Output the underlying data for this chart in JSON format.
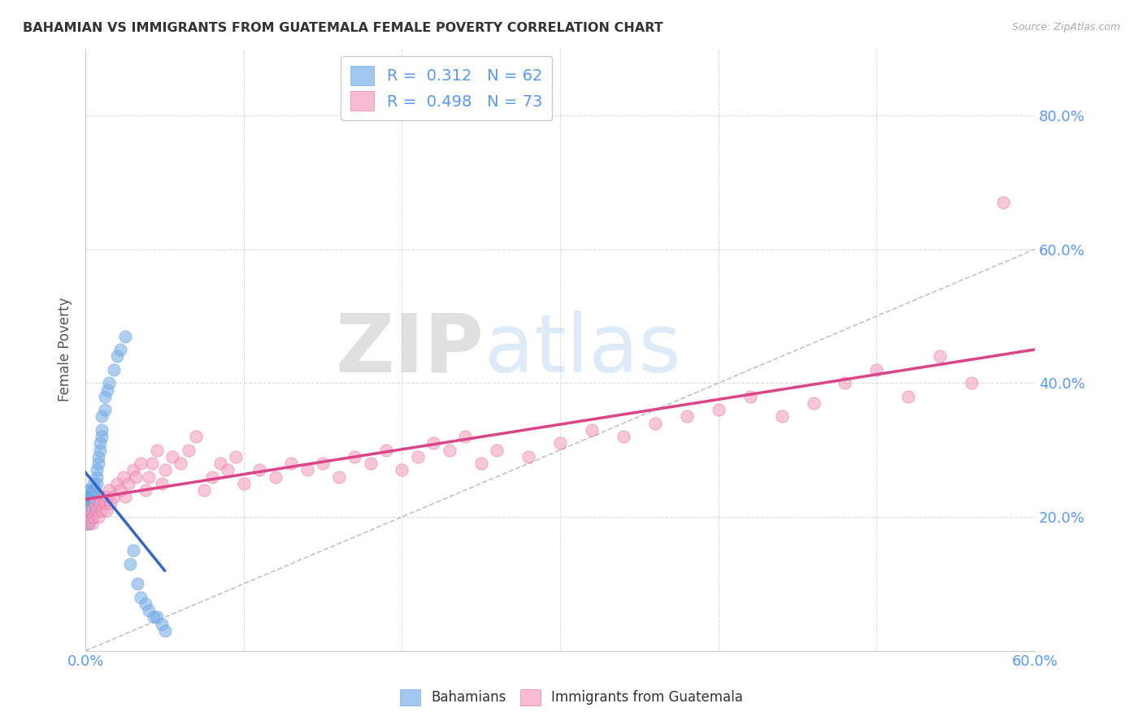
{
  "title": "BAHAMIAN VS IMMIGRANTS FROM GUATEMALA FEMALE POVERTY CORRELATION CHART",
  "source": "Source: ZipAtlas.com",
  "ylabel": "Female Poverty",
  "ytick_labels": [
    "20.0%",
    "40.0%",
    "60.0%",
    "80.0%"
  ],
  "ytick_values": [
    0.2,
    0.4,
    0.6,
    0.8
  ],
  "xlim": [
    0.0,
    0.6
  ],
  "ylim": [
    0.0,
    0.9
  ],
  "bahamian_color": "#7ab0e8",
  "bahamian_edge": "#5599dd",
  "guatemala_color": "#f5a0c0",
  "guatemala_edge": "#e06090",
  "bahamian_line_color": "#3366cc",
  "guatemala_line_color": "#dd4488",
  "diagonal_color": "#aaaaaa",
  "bahamian_R": 0.312,
  "bahamian_N": 62,
  "guatemala_R": 0.498,
  "guatemala_N": 73,
  "watermark_zip": "ZIP",
  "watermark_atlas": "atlas",
  "legend_label1": "Bahamians",
  "legend_label2": "Immigrants from Guatemala",
  "tick_color": "#5599ff",
  "title_color": "#333333",
  "source_color": "#aaaaaa",
  "bahamian_scatter_x": [
    0.001,
    0.001,
    0.001,
    0.001,
    0.001,
    0.001,
    0.001,
    0.001,
    0.002,
    0.002,
    0.002,
    0.002,
    0.002,
    0.002,
    0.002,
    0.002,
    0.002,
    0.003,
    0.003,
    0.003,
    0.003,
    0.003,
    0.004,
    0.004,
    0.004,
    0.004,
    0.005,
    0.005,
    0.005,
    0.005,
    0.005,
    0.006,
    0.006,
    0.006,
    0.007,
    0.007,
    0.007,
    0.008,
    0.008,
    0.009,
    0.009,
    0.01,
    0.01,
    0.01,
    0.012,
    0.012,
    0.014,
    0.015,
    0.018,
    0.02,
    0.022,
    0.025,
    0.028,
    0.03,
    0.033,
    0.035,
    0.038,
    0.04,
    0.043,
    0.045,
    0.048,
    0.05
  ],
  "bahamian_scatter_y": [
    0.19,
    0.2,
    0.21,
    0.22,
    0.23,
    0.24,
    0.22,
    0.21,
    0.19,
    0.2,
    0.21,
    0.22,
    0.23,
    0.22,
    0.21,
    0.2,
    0.19,
    0.2,
    0.21,
    0.22,
    0.23,
    0.24,
    0.2,
    0.21,
    0.22,
    0.23,
    0.21,
    0.22,
    0.23,
    0.24,
    0.25,
    0.22,
    0.23,
    0.24,
    0.25,
    0.26,
    0.27,
    0.28,
    0.29,
    0.3,
    0.31,
    0.32,
    0.33,
    0.35,
    0.36,
    0.38,
    0.39,
    0.4,
    0.42,
    0.44,
    0.45,
    0.47,
    0.13,
    0.15,
    0.1,
    0.08,
    0.07,
    0.06,
    0.05,
    0.05,
    0.04,
    0.03
  ],
  "guatemala_scatter_x": [
    0.001,
    0.002,
    0.003,
    0.004,
    0.005,
    0.006,
    0.007,
    0.008,
    0.009,
    0.01,
    0.011,
    0.012,
    0.013,
    0.014,
    0.015,
    0.016,
    0.018,
    0.02,
    0.022,
    0.024,
    0.025,
    0.027,
    0.03,
    0.032,
    0.035,
    0.038,
    0.04,
    0.042,
    0.045,
    0.048,
    0.05,
    0.055,
    0.06,
    0.065,
    0.07,
    0.075,
    0.08,
    0.085,
    0.09,
    0.095,
    0.1,
    0.11,
    0.12,
    0.13,
    0.14,
    0.15,
    0.16,
    0.17,
    0.18,
    0.19,
    0.2,
    0.21,
    0.22,
    0.23,
    0.24,
    0.25,
    0.26,
    0.28,
    0.3,
    0.32,
    0.34,
    0.36,
    0.38,
    0.4,
    0.42,
    0.44,
    0.46,
    0.48,
    0.5,
    0.52,
    0.54,
    0.56,
    0.58
  ],
  "guatemala_scatter_y": [
    0.19,
    0.2,
    0.21,
    0.19,
    0.2,
    0.22,
    0.21,
    0.2,
    0.22,
    0.21,
    0.23,
    0.22,
    0.21,
    0.23,
    0.24,
    0.22,
    0.23,
    0.25,
    0.24,
    0.26,
    0.23,
    0.25,
    0.27,
    0.26,
    0.28,
    0.24,
    0.26,
    0.28,
    0.3,
    0.25,
    0.27,
    0.29,
    0.28,
    0.3,
    0.32,
    0.24,
    0.26,
    0.28,
    0.27,
    0.29,
    0.25,
    0.27,
    0.26,
    0.28,
    0.27,
    0.28,
    0.26,
    0.29,
    0.28,
    0.3,
    0.27,
    0.29,
    0.31,
    0.3,
    0.32,
    0.28,
    0.3,
    0.29,
    0.31,
    0.33,
    0.32,
    0.34,
    0.35,
    0.36,
    0.38,
    0.35,
    0.37,
    0.4,
    0.42,
    0.38,
    0.44,
    0.4,
    0.67
  ]
}
